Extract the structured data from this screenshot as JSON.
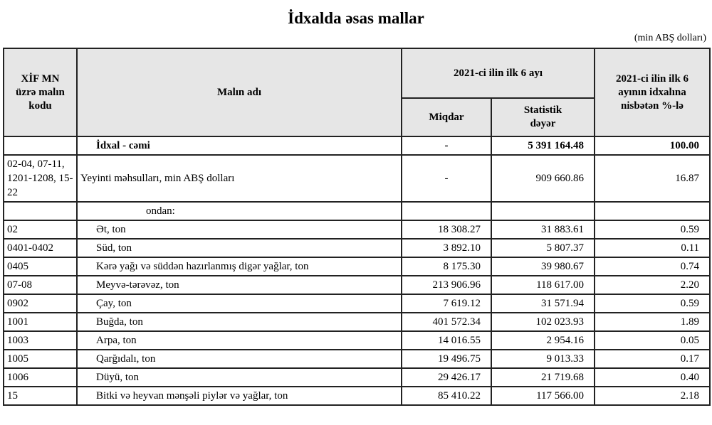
{
  "title": "İdxalda əsas mallar",
  "unit": "(min ABŞ dolları)",
  "headers": {
    "code": "XİF MN üzrə malın kodu",
    "name": "Malın adı",
    "period": "2021-ci ilin ilk 6 ayı",
    "quantity": "Miqdar",
    "value": "Statistik dəyər",
    "share": "2021-ci ilin ilk 6 ayının idxalına nisbətən %-lə"
  },
  "total": {
    "code": "",
    "name": "İdxal - cəmi",
    "quantity": "-",
    "value": "5 391 164.48",
    "share": "100.00"
  },
  "food": {
    "code": "02-04, 07-11, 1201-1208, 15-22",
    "name": "Yeyinti məhsulları, min ABŞ dolları",
    "quantity": "-",
    "value": "909 660.86",
    "share": "16.87"
  },
  "ondan": "ondan:",
  "rows": [
    {
      "code": "02",
      "name": "Ət, ton",
      "quantity": "18 308.27",
      "value": "31 883.61",
      "share": "0.59"
    },
    {
      "code": "0401-0402",
      "name": "Süd, ton",
      "quantity": "3 892.10",
      "value": "5 807.37",
      "share": "0.11"
    },
    {
      "code": "0405",
      "name": "Kərə yağı və süddən hazırlanmış digər yağlar, ton",
      "quantity": "8 175.30",
      "value": "39 980.67",
      "share": "0.74"
    },
    {
      "code": "07-08",
      "name": "Meyvə-tərəvəz, ton",
      "quantity": "213 906.96",
      "value": "118 617.00",
      "share": "2.20"
    },
    {
      "code": "0902",
      "name": "Çay, ton",
      "quantity": "7 619.12",
      "value": "31 571.94",
      "share": "0.59"
    },
    {
      "code": "1001",
      "name": "Buğda, ton",
      "quantity": "401 572.34",
      "value": "102 023.93",
      "share": "1.89"
    },
    {
      "code": "1003",
      "name": "Arpa, ton",
      "quantity": "14 016.55",
      "value": "2 954.16",
      "share": "0.05"
    },
    {
      "code": "1005",
      "name": "Qarğıdalı, ton",
      "quantity": "19 496.75",
      "value": "9 013.33",
      "share": "0.17"
    },
    {
      "code": "1006",
      "name": "Düyü, ton",
      "quantity": "29 426.17",
      "value": "21 719.68",
      "share": "0.40"
    },
    {
      "code": "15",
      "name": "Bitki və heyvan mənşəli piylər və yağlar, ton",
      "quantity": "85 410.22",
      "value": "117 566.00",
      "share": "2.18"
    }
  ]
}
